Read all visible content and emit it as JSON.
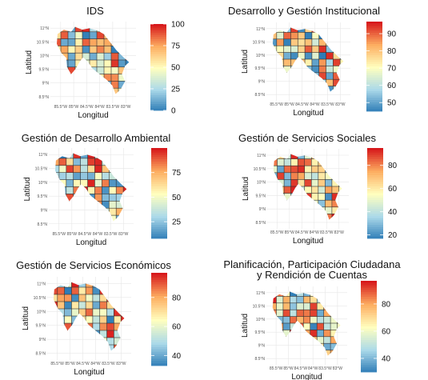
{
  "chart_data": [
    {
      "type": "heatmap",
      "title": "IDS",
      "xlabel": "Longitud",
      "ylabel": "Latitud",
      "x_tick_labels": [
        "85.5°W",
        "85°W",
        "84.5°W",
        "84°W",
        "83.5°W",
        "83°W"
      ],
      "y_tick_labels": [
        "11°N",
        "10.5°N",
        "10°N",
        "9.5°N",
        "9°N",
        "8.5°N"
      ],
      "legend": {
        "min": 0,
        "max": 100,
        "ticks": [
          0,
          25,
          50,
          75,
          100
        ]
      },
      "grid": true,
      "legend_placement": "right"
    },
    {
      "type": "heatmap",
      "title": "Desarrollo y Gestión Institucional",
      "xlabel": "Longitud",
      "ylabel": "Latitud",
      "x_tick_labels": [
        "85.5°W",
        "85°W",
        "84.5°W",
        "84°W",
        "83.5°W",
        "83°W"
      ],
      "y_tick_labels": [
        "11°N",
        "10.5°N",
        "10°N",
        "9.5°N",
        "9°N",
        "8.5°N"
      ],
      "legend": {
        "min": 45,
        "max": 97,
        "ticks": [
          50,
          60,
          70,
          80,
          90
        ]
      },
      "grid": true,
      "legend_placement": "right"
    },
    {
      "type": "heatmap",
      "title": "Gestión de Desarrollo Ambiental",
      "xlabel": "Longitud",
      "ylabel": "Latitud",
      "x_tick_labels": [
        "85.5°W",
        "85°W",
        "84.5°W",
        "84°W",
        "83.5°W",
        "83°W"
      ],
      "y_tick_labels": [
        "11°N",
        "10.5°N",
        "10°N",
        "9.5°N",
        "9°N",
        "8.5°N"
      ],
      "legend": {
        "min": 8,
        "max": 100,
        "ticks": [
          25,
          50,
          75
        ]
      },
      "grid": true,
      "legend_placement": "right"
    },
    {
      "type": "heatmap",
      "title": "Gestión de Servicios Sociales",
      "xlabel": "Longitud",
      "ylabel": "Latitud",
      "x_tick_labels": [
        "85.5°W",
        "85°W",
        "84.5°W",
        "84°W",
        "83.5°W",
        "83°W"
      ],
      "y_tick_labels": [
        "11°N",
        "10.5°N",
        "10°N",
        "9.5°N",
        "9°N",
        "8.5°N"
      ],
      "legend": {
        "min": 17,
        "max": 95,
        "ticks": [
          20,
          40,
          60,
          80
        ]
      },
      "grid": true,
      "legend_placement": "right"
    },
    {
      "type": "heatmap",
      "title": "Gestión de Servicios Económicos",
      "xlabel": "Longitud",
      "ylabel": "Latitud",
      "x_tick_labels": [
        "85.5°W",
        "85°W",
        "84.5°W",
        "84°W",
        "83.5°W",
        "83°W"
      ],
      "y_tick_labels": [
        "11°N",
        "10.5°N",
        "10°N",
        "9.5°N",
        "9°N",
        "8.5°N"
      ],
      "legend": {
        "min": 33,
        "max": 97,
        "ticks": [
          40,
          60,
          80
        ]
      },
      "grid": true,
      "legend_placement": "right"
    },
    {
      "type": "heatmap",
      "title": "Planificación, Participación Ciudadana y Rendición de Cuentas",
      "title_lines": [
        "Planificación, Participación Ciudadana",
        "y Rendición de Cuentas"
      ],
      "xlabel": "Longitud",
      "ylabel": "Latitud",
      "x_tick_labels": [
        "85.5°W",
        "85°W",
        "84.5°W",
        "84°W",
        "83.5°W",
        "83°W"
      ],
      "y_tick_labels": [
        "11°N",
        "10.5°N",
        "10°N",
        "9.5°N",
        "9°N",
        "8.5°N"
      ],
      "legend": {
        "min": 30,
        "max": 97,
        "ticks": [
          40,
          60,
          80
        ]
      },
      "grid": true,
      "legend_placement": "right"
    }
  ],
  "colors": {
    "scale": [
      "#2c7bb6",
      "#abd9e9",
      "#ffffbf",
      "#fdae61",
      "#d7191c"
    ],
    "panel_bg": "#ffffff",
    "grid": "#e6e6e6",
    "region_border": "#333333"
  }
}
